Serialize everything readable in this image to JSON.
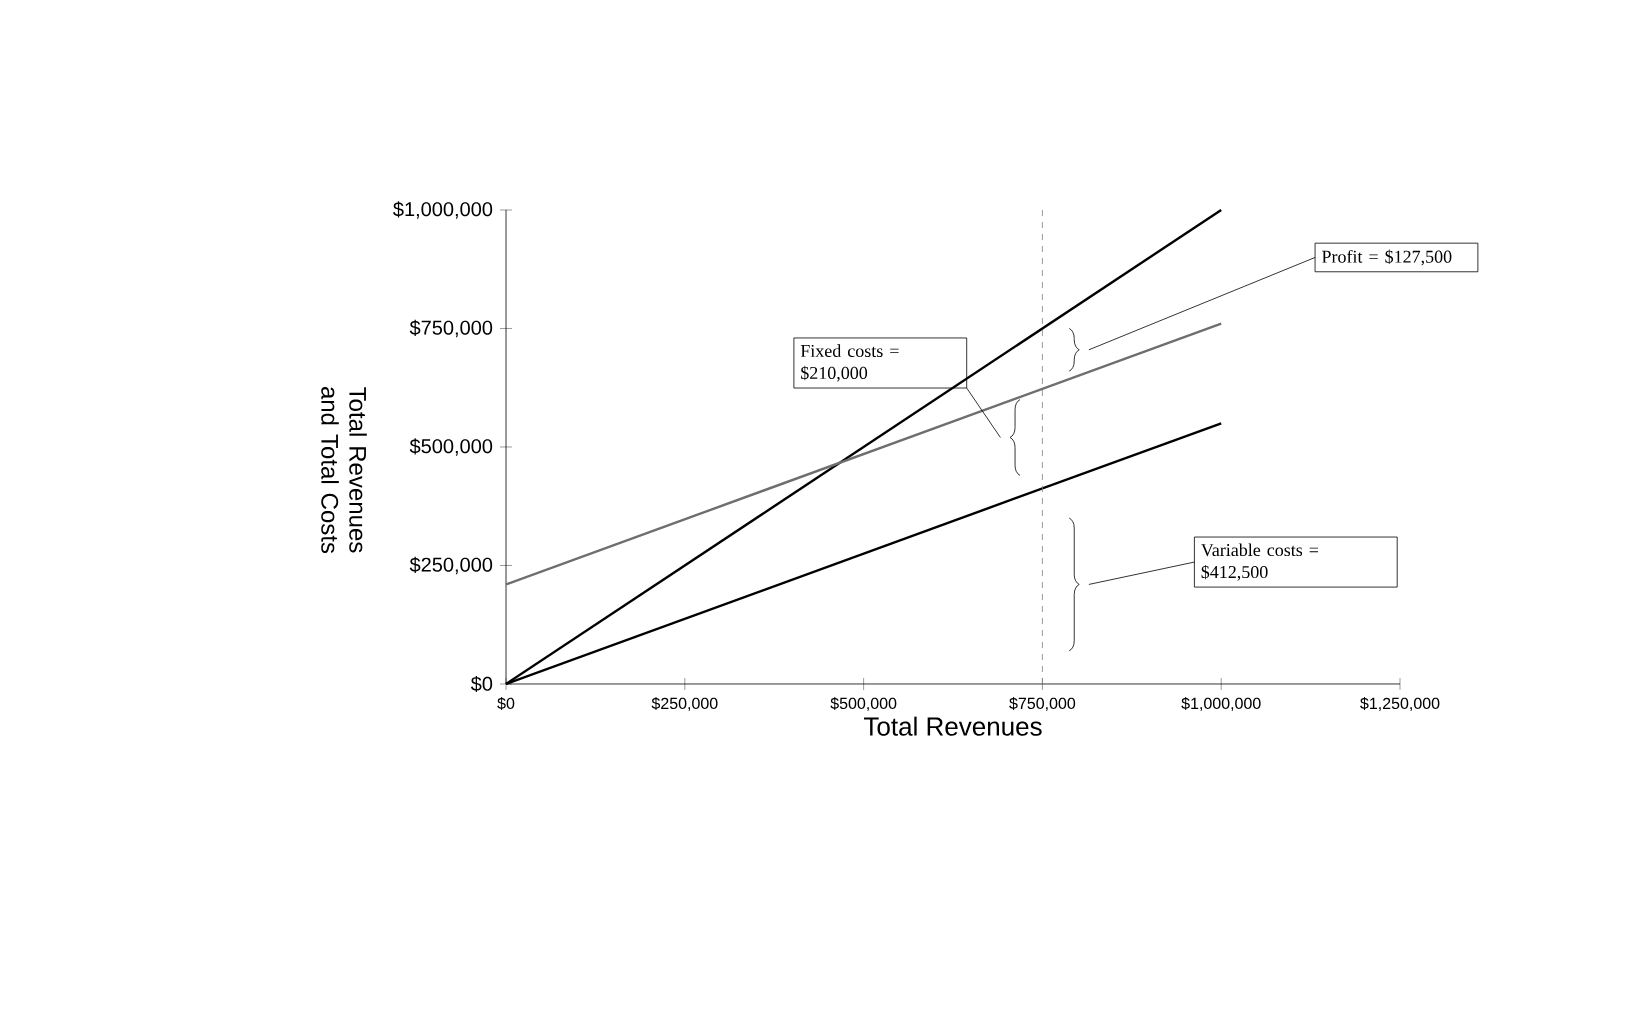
{
  "chart_data": {
    "type": "line",
    "xlabel": "Total Revenues",
    "ylabel": "Total Revenues and Total Costs",
    "x": [
      0,
      1000000
    ],
    "series": [
      {
        "color": "#000000",
        "values": [
          0,
          1000000
        ]
      },
      {
        "color": "#6e6e6e",
        "values": [
          210000,
          760000
        ]
      },
      {
        "color": "#000000",
        "values": [
          0,
          550000
        ]
      }
    ],
    "xlim": [
      0,
      1250000
    ],
    "ylim": [
      0,
      1000000
    ],
    "xticks": [
      {
        "value": 0,
        "label": "$0"
      },
      {
        "value": 250000,
        "label": "$250,000"
      },
      {
        "value": 500000,
        "label": "$500,000"
      },
      {
        "value": 750000,
        "label": "$750,000"
      },
      {
        "value": 1000000,
        "label": "$1,000,000"
      },
      {
        "value": 1250000,
        "label": "$1,250,000"
      }
    ],
    "yticks": [
      {
        "value": 0,
        "label": "$0"
      },
      {
        "value": 250000,
        "label": "$250,000"
      },
      {
        "value": 500000,
        "label": "$500,000"
      },
      {
        "value": 750000,
        "label": "$750,000"
      },
      {
        "value": 1000000,
        "label": "$1,000,000"
      }
    ],
    "ref_lines": [
      {
        "axis": "x",
        "value": 750000,
        "color": "#808080",
        "line_style": "dashed"
      }
    ],
    "annotations": [
      "Profit = $127,500",
      "Fixed costs = $210,000",
      "Variable costs = $412,500"
    ],
    "grid": false,
    "line_style": "solid"
  }
}
